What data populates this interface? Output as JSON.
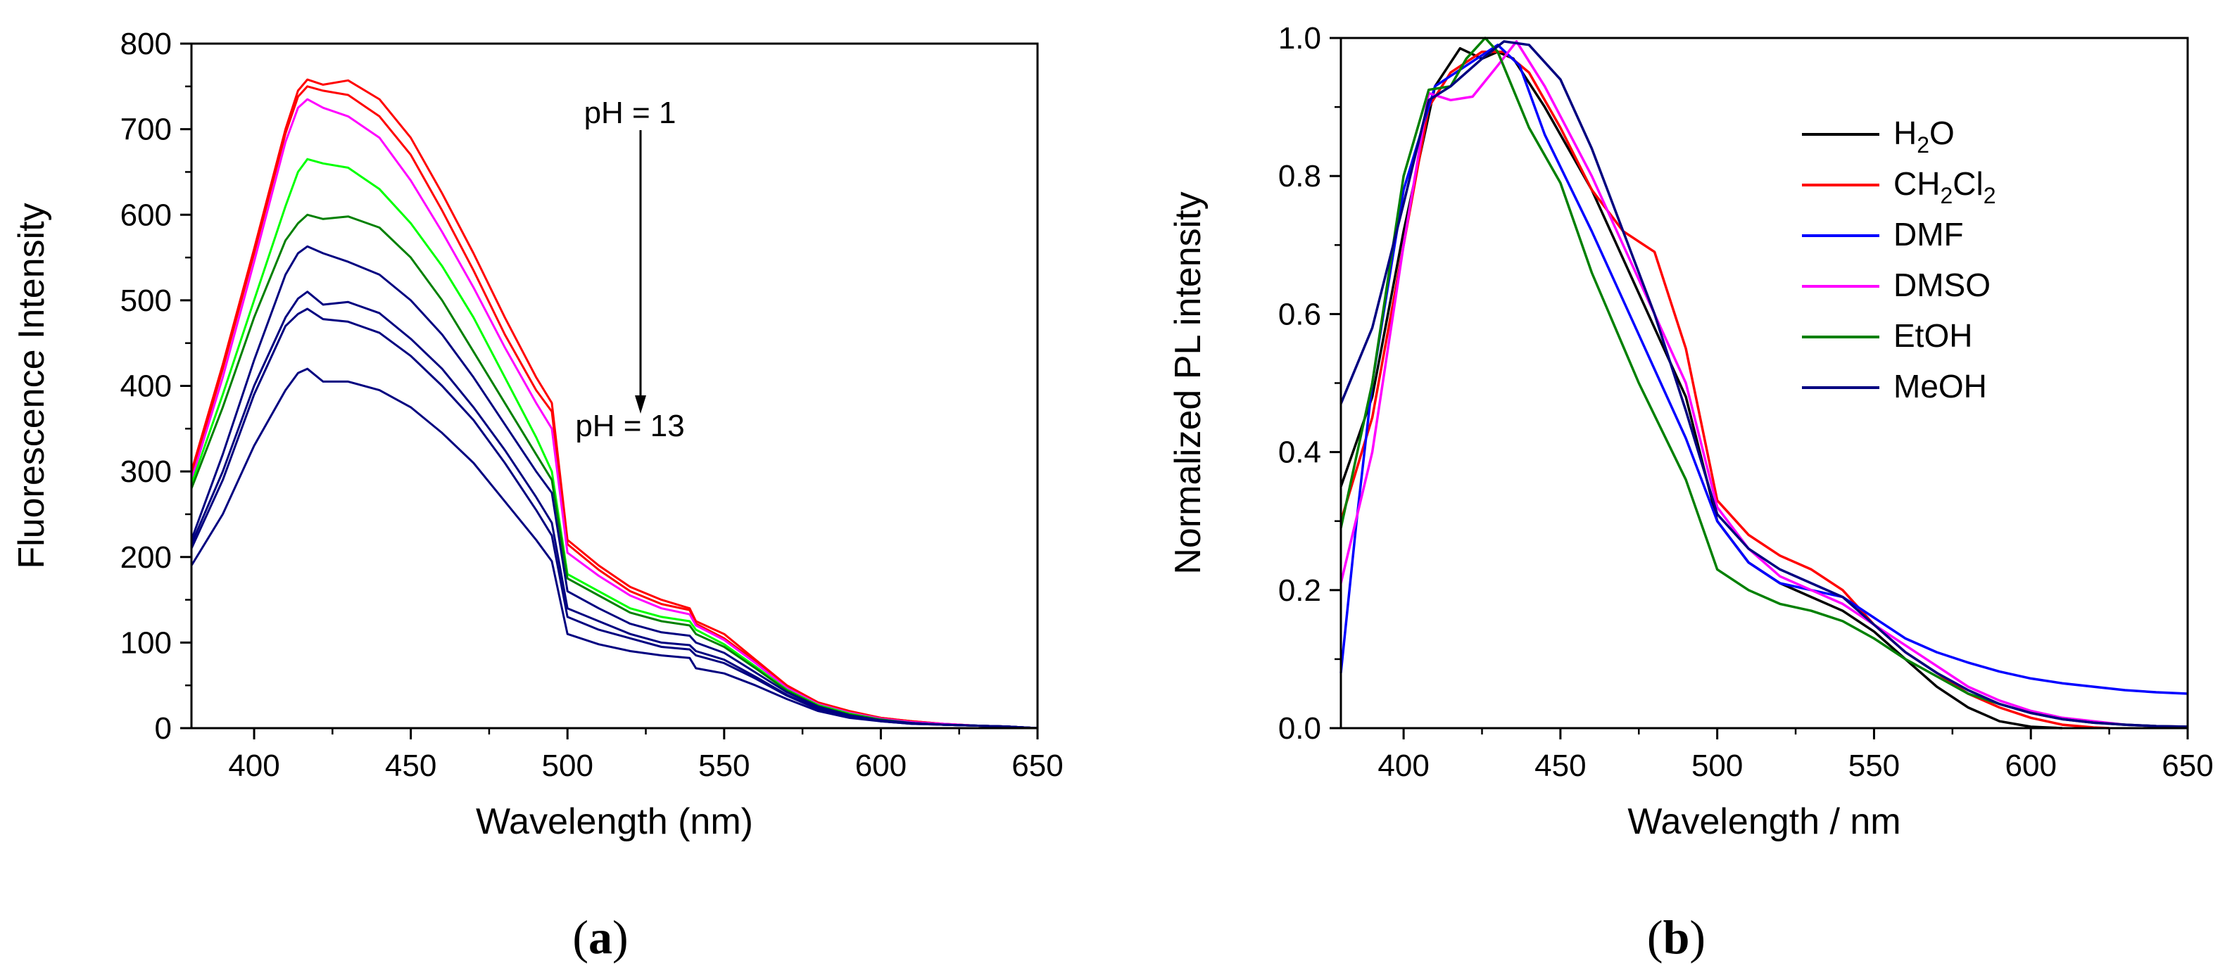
{
  "chart_data": [
    {
      "panel": "a",
      "panel_label": "a",
      "type": "line",
      "xlabel": "Wavelength (nm)",
      "ylabel": "Fluorescence Intensity",
      "xlim": [
        380,
        650
      ],
      "ylim": [
        0,
        800
      ],
      "xticks": [
        400,
        450,
        500,
        550,
        600,
        650
      ],
      "yticks": [
        0,
        100,
        200,
        300,
        400,
        500,
        600,
        700,
        800
      ],
      "annotations": {
        "top": "pH = 1",
        "bottom": "pH = 13"
      },
      "x": [
        380,
        390,
        400,
        410,
        414,
        417,
        422,
        430,
        440,
        450,
        460,
        470,
        480,
        490,
        495,
        500,
        510,
        520,
        530,
        539,
        541,
        550,
        560,
        570,
        580,
        590,
        600,
        610,
        620,
        630,
        640,
        650
      ],
      "series": [
        {
          "color": "#ff0000",
          "values": [
            300,
            425,
            560,
            700,
            745,
            758,
            752,
            757,
            735,
            690,
            625,
            555,
            480,
            410,
            380,
            220,
            190,
            165,
            150,
            140,
            125,
            110,
            80,
            50,
            30,
            20,
            12,
            8,
            5,
            3,
            2,
            0
          ]
        },
        {
          "color": "#ff0000",
          "values": [
            295,
            420,
            555,
            695,
            738,
            750,
            745,
            740,
            715,
            670,
            605,
            535,
            460,
            395,
            370,
            215,
            185,
            160,
            145,
            138,
            122,
            105,
            78,
            48,
            29,
            19,
            12,
            8,
            5,
            3,
            2,
            0
          ]
        },
        {
          "color": "#ff00ff",
          "values": [
            290,
            410,
            545,
            685,
            725,
            735,
            725,
            715,
            690,
            640,
            580,
            515,
            445,
            380,
            350,
            205,
            178,
            155,
            140,
            133,
            120,
            103,
            76,
            47,
            28,
            18,
            11,
            7,
            5,
            3,
            2,
            0
          ]
        },
        {
          "color": "#00ff00",
          "values": [
            285,
            390,
            500,
            610,
            650,
            665,
            660,
            655,
            630,
            590,
            540,
            480,
            410,
            340,
            300,
            180,
            160,
            140,
            130,
            125,
            115,
            98,
            72,
            45,
            27,
            17,
            10,
            6,
            4,
            3,
            2,
            0
          ]
        },
        {
          "color": "#008000",
          "values": [
            280,
            375,
            480,
            570,
            590,
            600,
            595,
            598,
            585,
            550,
            500,
            440,
            380,
            320,
            290,
            175,
            155,
            135,
            125,
            120,
            110,
            95,
            70,
            44,
            26,
            16,
            10,
            6,
            4,
            3,
            2,
            0
          ]
        },
        {
          "color": "#000080",
          "values": [
            220,
            320,
            430,
            530,
            555,
            563,
            555,
            545,
            530,
            500,
            460,
            410,
            355,
            300,
            275,
            160,
            140,
            122,
            112,
            108,
            100,
            88,
            65,
            42,
            25,
            15,
            9,
            6,
            4,
            3,
            2,
            0
          ]
        },
        {
          "color": "#000080",
          "values": [
            215,
            300,
            400,
            480,
            502,
            510,
            495,
            498,
            485,
            455,
            420,
            375,
            325,
            270,
            240,
            140,
            125,
            110,
            100,
            97,
            90,
            80,
            60,
            39,
            23,
            14,
            9,
            6,
            4,
            3,
            2,
            0
          ]
        },
        {
          "color": "#000080",
          "values": [
            210,
            290,
            390,
            470,
            484,
            490,
            478,
            475,
            462,
            435,
            400,
            360,
            310,
            255,
            225,
            130,
            115,
            105,
            95,
            92,
            85,
            76,
            58,
            38,
            22,
            14,
            8,
            5,
            4,
            3,
            2,
            0
          ]
        },
        {
          "color": "#000080",
          "values": [
            190,
            250,
            330,
            395,
            415,
            420,
            405,
            405,
            395,
            375,
            345,
            310,
            265,
            220,
            195,
            110,
            98,
            90,
            85,
            82,
            70,
            64,
            50,
            34,
            20,
            12,
            8,
            5,
            4,
            3,
            2,
            0
          ]
        }
      ]
    },
    {
      "panel": "b",
      "panel_label": "b",
      "type": "line",
      "xlabel": "Wavelength / nm",
      "ylabel": "Normalized PL intensity",
      "xlim": [
        380,
        650
      ],
      "ylim": [
        0,
        1.0
      ],
      "xticks": [
        400,
        450,
        500,
        550,
        600,
        650
      ],
      "yticks": [
        0.0,
        0.2,
        0.4,
        0.6,
        0.8,
        1.0
      ],
      "ytick_labels": [
        "0.0",
        "0.2",
        "0.4",
        "0.6",
        "0.8",
        "1.0"
      ],
      "legend_position": "top-right",
      "series": [
        {
          "name": "H2O",
          "label_main": "H",
          "label_parts": [
            {
              "t": "H"
            },
            {
              "t": "2",
              "sub": true
            },
            {
              "t": "O"
            }
          ],
          "color": "#000000",
          "x": [
            380,
            390,
            400,
            410,
            418,
            425,
            430,
            435,
            445,
            460,
            475,
            490,
            500,
            510,
            520,
            530,
            540,
            550,
            560,
            570,
            580,
            590,
            600,
            610
          ],
          "y": [
            0.35,
            0.48,
            0.72,
            0.93,
            0.985,
            0.97,
            0.98,
            0.97,
            0.9,
            0.78,
            0.63,
            0.48,
            0.3,
            0.24,
            0.21,
            0.19,
            0.17,
            0.14,
            0.1,
            0.06,
            0.03,
            0.01,
            0.002,
            0.0
          ]
        },
        {
          "name": "CH2Cl2",
          "label_parts": [
            {
              "t": "CH"
            },
            {
              "t": "2",
              "sub": true
            },
            {
              "t": "Cl"
            },
            {
              "t": "2",
              "sub": true
            }
          ],
          "color": "#ff0000",
          "x": [
            380,
            390,
            400,
            408,
            415,
            425,
            432,
            440,
            450,
            460,
            470,
            480,
            490,
            500,
            510,
            520,
            530,
            540,
            550,
            560,
            570,
            580,
            590,
            600,
            610,
            620,
            625
          ],
          "y": [
            0.3,
            0.45,
            0.7,
            0.9,
            0.95,
            0.98,
            0.98,
            0.95,
            0.87,
            0.78,
            0.72,
            0.69,
            0.55,
            0.33,
            0.28,
            0.25,
            0.23,
            0.2,
            0.15,
            0.11,
            0.08,
            0.05,
            0.03,
            0.015,
            0.005,
            0.001,
            0.0
          ]
        },
        {
          "name": "DMF",
          "label_parts": [
            {
              "t": "DMF"
            }
          ],
          "color": "#0000ff",
          "x": [
            380,
            385,
            390,
            400,
            410,
            420,
            430,
            437,
            445,
            460,
            475,
            490,
            500,
            510,
            520,
            530,
            540,
            550,
            560,
            570,
            580,
            590,
            600,
            610,
            620,
            630,
            640,
            650
          ],
          "y": [
            0.08,
            0.3,
            0.5,
            0.78,
            0.93,
            0.96,
            0.99,
            0.96,
            0.86,
            0.72,
            0.57,
            0.42,
            0.3,
            0.24,
            0.21,
            0.2,
            0.19,
            0.16,
            0.13,
            0.11,
            0.095,
            0.082,
            0.072,
            0.065,
            0.06,
            0.055,
            0.052,
            0.05
          ]
        },
        {
          "name": "DMSO",
          "label_parts": [
            {
              "t": "DMSO"
            }
          ],
          "color": "#ff00ff",
          "x": [
            380,
            390,
            400,
            408,
            415,
            422,
            430,
            436,
            445,
            460,
            475,
            490,
            500,
            510,
            520,
            530,
            540,
            550,
            560,
            570,
            580,
            590,
            600,
            610,
            620,
            630,
            640,
            650
          ],
          "y": [
            0.21,
            0.4,
            0.7,
            0.92,
            0.91,
            0.915,
            0.96,
            0.995,
            0.93,
            0.8,
            0.65,
            0.5,
            0.32,
            0.26,
            0.22,
            0.2,
            0.18,
            0.15,
            0.12,
            0.09,
            0.06,
            0.04,
            0.025,
            0.015,
            0.01,
            0.005,
            0.003,
            0.002
          ]
        },
        {
          "name": "EtOH",
          "label_parts": [
            {
              "t": "EtOH"
            }
          ],
          "color": "#008000",
          "x": [
            380,
            390,
            400,
            408,
            415,
            420,
            426,
            430,
            440,
            450,
            460,
            475,
            490,
            500,
            510,
            520,
            530,
            540,
            550,
            560,
            570,
            580,
            590,
            600,
            610,
            620,
            630,
            640,
            650
          ],
          "y": [
            0.29,
            0.5,
            0.8,
            0.925,
            0.93,
            0.97,
            1.0,
            0.98,
            0.87,
            0.79,
            0.66,
            0.5,
            0.36,
            0.23,
            0.2,
            0.18,
            0.17,
            0.155,
            0.13,
            0.1,
            0.075,
            0.05,
            0.035,
            0.022,
            0.013,
            0.008,
            0.005,
            0.003,
            0.002
          ]
        },
        {
          "name": "MeOH",
          "label_parts": [
            {
              "t": "MeOH"
            }
          ],
          "color": "#000080",
          "x": [
            380,
            390,
            400,
            408,
            415,
            425,
            432,
            440,
            450,
            460,
            470,
            480,
            490,
            500,
            510,
            520,
            530,
            540,
            550,
            560,
            570,
            580,
            590,
            600,
            610,
            620,
            630,
            640,
            650
          ],
          "y": [
            0.47,
            0.58,
            0.76,
            0.91,
            0.93,
            0.97,
            0.995,
            0.99,
            0.94,
            0.84,
            0.72,
            0.6,
            0.46,
            0.31,
            0.26,
            0.23,
            0.21,
            0.19,
            0.15,
            0.11,
            0.08,
            0.055,
            0.035,
            0.022,
            0.013,
            0.008,
            0.005,
            0.003,
            0.002
          ]
        }
      ]
    }
  ]
}
